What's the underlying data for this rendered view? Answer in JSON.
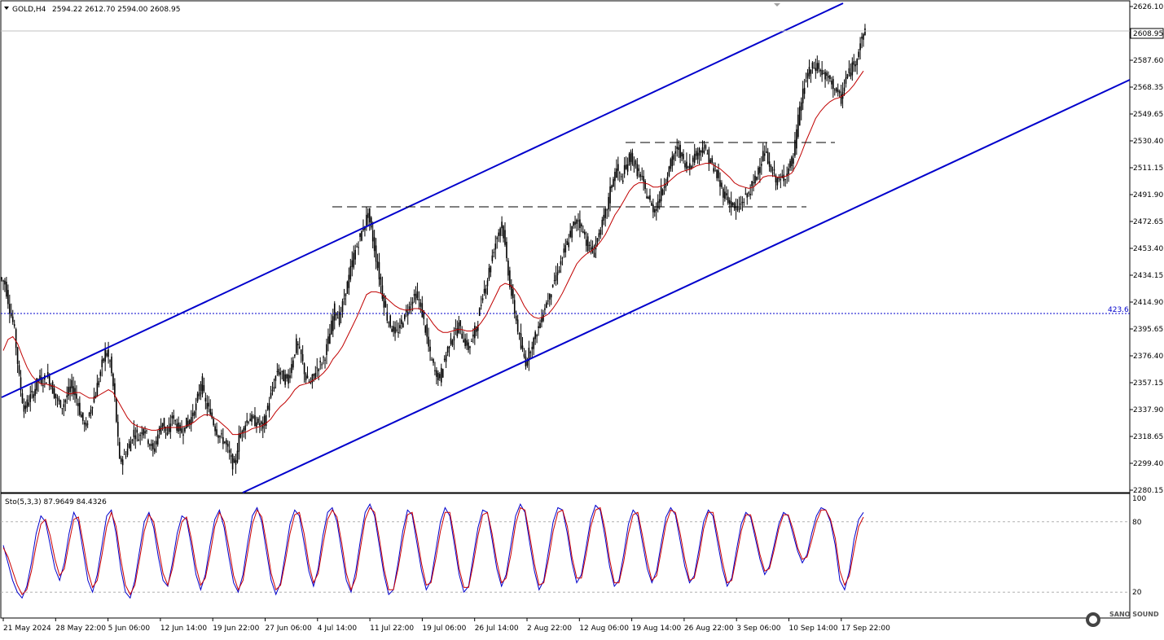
{
  "header": {
    "symbol": "GOLD,H4",
    "ohlc": "2594.22 2612.70 2594.00 2608.95"
  },
  "stoch_header": "Sto(5,3,3) 87.9649 84.4326",
  "current_price_label": "2608.95",
  "fib_label": "423.6",
  "watermark": "SANO SOUND",
  "colors": {
    "background": "#ffffff",
    "candles": "#000000",
    "ma": "#c00000",
    "channel": "#0000cc",
    "fib_line": "#0000cc",
    "stoch_main": "#0000cc",
    "stoch_signal": "#cc0000",
    "price_line": "#c0c0c0"
  },
  "chart_data": [
    {
      "type": "line",
      "title": "GOLD,H4",
      "price_axis_ticks": [
        "2626.10",
        "2608.95",
        "2587.60",
        "2568.35",
        "2549.65",
        "2530.40",
        "2511.15",
        "2491.90",
        "2472.65",
        "2453.40",
        "2434.15",
        "2414.90",
        "2395.65",
        "2376.40",
        "2357.15",
        "2337.90",
        "2318.65",
        "2299.40",
        "2280.15"
      ],
      "time_axis_ticks": [
        "21 May 2024",
        "28 May 22:00",
        "5 Jun 06:00",
        "12 Jun 14:00",
        "19 Jun 22:00",
        "27 Jun 06:00",
        "4 Jul 14:00",
        "11 Jul 22:00",
        "19 Jul 06:00",
        "26 Jul 14:00",
        "2 Aug 22:00",
        "12 Aug 06:00",
        "19 Aug 14:00",
        "26 Aug 22:00",
        "3 Sep 06:00",
        "10 Sep 14:00",
        "17 Sep 22:00"
      ],
      "ylim": [
        2280.15,
        2626.1
      ],
      "grid": false,
      "series": [
        {
          "name": "",
          "values": [
            2428,
            2410,
            2395,
            2360,
            2337,
            2345,
            2350,
            2360,
            2358,
            2362,
            2352,
            2344,
            2340,
            2348,
            2355,
            2346,
            2332,
            2325,
            2340,
            2350,
            2365,
            2380,
            2372,
            2345,
            2300,
            2305,
            2312,
            2322,
            2318,
            2326,
            2316,
            2308,
            2320,
            2330,
            2318,
            2334,
            2326,
            2322,
            2328,
            2332,
            2340,
            2358,
            2342,
            2336,
            2325,
            2318,
            2315,
            2305,
            2296,
            2318,
            2326,
            2332,
            2330,
            2328,
            2325,
            2340,
            2352,
            2366,
            2362,
            2358,
            2370,
            2385,
            2376,
            2360,
            2356,
            2366,
            2370,
            2377,
            2392,
            2410,
            2402,
            2418,
            2432,
            2448,
            2458,
            2468,
            2478,
            2460,
            2440,
            2420,
            2404,
            2396,
            2392,
            2400,
            2408,
            2415,
            2420,
            2412,
            2395,
            2376,
            2365,
            2360,
            2374,
            2385,
            2392,
            2398,
            2388,
            2382,
            2390,
            2402,
            2420,
            2432,
            2448,
            2462,
            2472,
            2445,
            2420,
            2402,
            2382,
            2372,
            2382,
            2390,
            2400,
            2412,
            2420,
            2430,
            2440,
            2450,
            2460,
            2470,
            2474,
            2465,
            2455,
            2450,
            2460,
            2470,
            2482,
            2500,
            2510,
            2502,
            2512,
            2520,
            2510,
            2505,
            2494,
            2486,
            2480,
            2490,
            2500,
            2510,
            2520,
            2525,
            2515,
            2512,
            2518,
            2522,
            2525,
            2520,
            2512,
            2505,
            2495,
            2490,
            2485,
            2480,
            2485,
            2490,
            2495,
            2502,
            2515,
            2522,
            2512,
            2505,
            2500,
            2505,
            2510,
            2518,
            2545,
            2565,
            2578,
            2582,
            2584,
            2578,
            2575,
            2572,
            2565,
            2560,
            2575,
            2580,
            2588,
            2600,
            2608
          ]
        },
        {
          "name": "",
          "values": [
            2380,
            2388,
            2390,
            2385,
            2376,
            2368,
            2362,
            2358,
            2356,
            2356,
            2355,
            2354,
            2352,
            2350,
            2349,
            2350,
            2350,
            2348,
            2346,
            2346,
            2348,
            2350,
            2352,
            2350,
            2344,
            2338,
            2332,
            2328,
            2326,
            2325,
            2324,
            2323,
            2323,
            2324,
            2325,
            2325,
            2325,
            2325,
            2326,
            2327,
            2329,
            2332,
            2334,
            2334,
            2332,
            2330,
            2327,
            2324,
            2320,
            2320,
            2321,
            2322,
            2324,
            2325,
            2326,
            2328,
            2331,
            2336,
            2340,
            2343,
            2347,
            2352,
            2355,
            2356,
            2357,
            2359,
            2361,
            2364,
            2368,
            2374,
            2378,
            2383,
            2390,
            2397,
            2404,
            2412,
            2420,
            2422,
            2422,
            2421,
            2418,
            2415,
            2412,
            2410,
            2409,
            2409,
            2410,
            2410,
            2408,
            2404,
            2399,
            2395,
            2393,
            2393,
            2394,
            2395,
            2395,
            2394,
            2394,
            2396,
            2400,
            2405,
            2412,
            2419,
            2426,
            2428,
            2427,
            2424,
            2419,
            2412,
            2407,
            2404,
            2403,
            2404,
            2406,
            2410,
            2415,
            2421,
            2428,
            2435,
            2442,
            2446,
            2449,
            2451,
            2454,
            2458,
            2463,
            2470,
            2477,
            2482,
            2488,
            2494,
            2498,
            2500,
            2500,
            2499,
            2497,
            2497,
            2498,
            2500,
            2503,
            2506,
            2508,
            2509,
            2510,
            2512,
            2513,
            2514,
            2514,
            2512,
            2510,
            2507,
            2504,
            2500,
            2498,
            2497,
            2496,
            2497,
            2500,
            2504,
            2505,
            2505,
            2504,
            2504,
            2505,
            2507,
            2513,
            2521,
            2530,
            2538,
            2546,
            2551,
            2555,
            2558,
            2560,
            2561,
            2563,
            2566,
            2570,
            2575,
            2580
          ]
        }
      ],
      "annotations": [
        "423.6"
      ]
    },
    {
      "type": "line",
      "title": "Sto(5,3,3) 87.9649 84.4326",
      "ylim": [
        0,
        100
      ],
      "y_ticks": [
        "100",
        "80",
        "20"
      ],
      "series": [
        {
          "name": "Sto main",
          "values": [
            60,
            45,
            30,
            20,
            15,
            25,
            45,
            70,
            85,
            80,
            60,
            40,
            30,
            45,
            70,
            88,
            80,
            55,
            30,
            20,
            35,
            60,
            85,
            90,
            70,
            40,
            20,
            15,
            30,
            55,
            80,
            88,
            75,
            50,
            30,
            25,
            45,
            70,
            85,
            82,
            60,
            35,
            22,
            35,
            60,
            82,
            90,
            75,
            50,
            28,
            20,
            35,
            62,
            85,
            92,
            80,
            55,
            30,
            18,
            28,
            52,
            78,
            90,
            85,
            62,
            38,
            25,
            40,
            68,
            88,
            92,
            80,
            55,
            30,
            20,
            38,
            65,
            88,
            95,
            85,
            60,
            35,
            18,
            22,
            45,
            72,
            90,
            86,
            62,
            38,
            22,
            30,
            55,
            80,
            92,
            85,
            60,
            35,
            20,
            25,
            50,
            75,
            90,
            88,
            65,
            40,
            25,
            35,
            60,
            85,
            95,
            88,
            62,
            38,
            22,
            30,
            55,
            80,
            92,
            90,
            70,
            45,
            28,
            35,
            58,
            82,
            94,
            90,
            68,
            42,
            25,
            30,
            52,
            78,
            90,
            85,
            62,
            40,
            28,
            38,
            62,
            84,
            92,
            86,
            64,
            42,
            28,
            34,
            56,
            80,
            90,
            85,
            62,
            40,
            25,
            32,
            56,
            78,
            88,
            84,
            66,
            48,
            35,
            42,
            60,
            78,
            88,
            85,
            70,
            55,
            45,
            52,
            70,
            85,
            92,
            90,
            80,
            60,
            30,
            22,
            38,
            65,
            82,
            88
          ]
        },
        {
          "name": "Sto signal",
          "values": [
            58,
            50,
            38,
            26,
            18,
            22,
            38,
            60,
            78,
            82,
            68,
            48,
            34,
            40,
            62,
            82,
            84,
            62,
            38,
            24,
            30,
            52,
            76,
            88,
            76,
            48,
            26,
            18,
            26,
            48,
            72,
            86,
            80,
            58,
            36,
            26,
            40,
            62,
            80,
            84,
            66,
            42,
            26,
            32,
            52,
            76,
            88,
            80,
            58,
            34,
            22,
            30,
            54,
            78,
            90,
            84,
            62,
            36,
            22,
            26,
            46,
            70,
            86,
            88,
            70,
            44,
            28,
            36,
            60,
            82,
            90,
            84,
            62,
            36,
            22,
            32,
            58,
            82,
            92,
            88,
            66,
            40,
            22,
            22,
            40,
            64,
            86,
            88,
            68,
            44,
            26,
            28,
            48,
            72,
            88,
            88,
            66,
            40,
            24,
            24,
            44,
            68,
            86,
            88,
            70,
            46,
            28,
            32,
            52,
            78,
            92,
            90,
            68,
            44,
            26,
            28,
            48,
            72,
            88,
            90,
            76,
            50,
            32,
            32,
            52,
            76,
            90,
            92,
            74,
            48,
            28,
            28,
            46,
            70,
            86,
            88,
            68,
            46,
            30,
            34,
            56,
            78,
            90,
            88,
            70,
            48,
            30,
            32,
            50,
            74,
            88,
            88,
            68,
            46,
            28,
            30,
            50,
            72,
            86,
            86,
            70,
            52,
            38,
            40,
            56,
            74,
            86,
            86,
            74,
            58,
            48,
            50,
            64,
            80,
            90,
            90,
            82,
            66,
            38,
            26,
            34,
            56,
            76,
            84
          ]
        }
      ]
    }
  ]
}
